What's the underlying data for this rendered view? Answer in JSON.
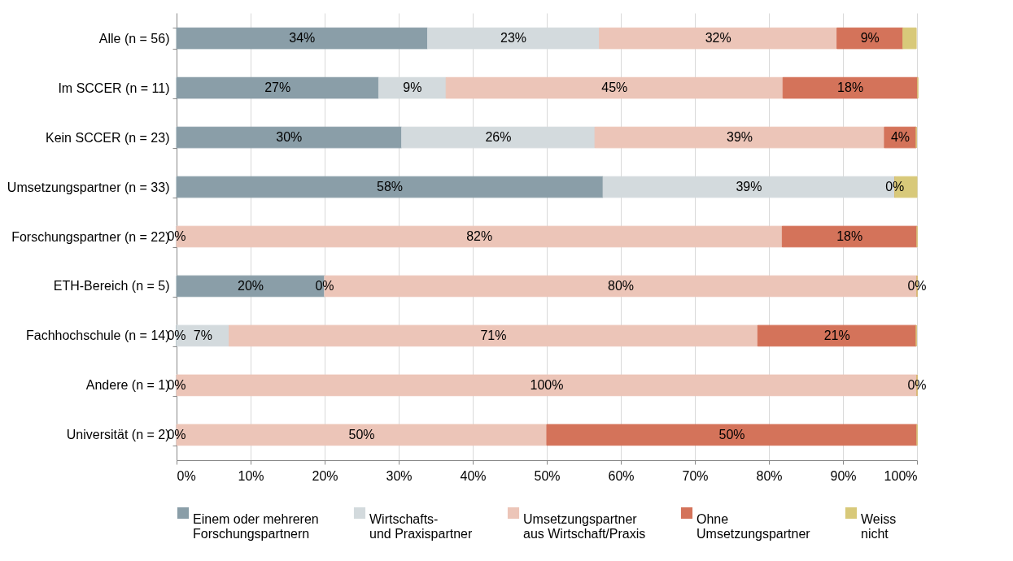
{
  "chart_data": {
    "type": "bar",
    "orientation": "horizontal",
    "stacked": true,
    "categories": [
      "Alle (n = 56)",
      "Im SCCER (n = 11)",
      "Kein SCCER (n = 23)",
      "Umsetzungspartner (n = 33)",
      "Forschungspartner (n = 22)",
      "ETH-Bereich (n = 5)",
      "Fachhochschule (n = 14)",
      "Andere (n = 1)",
      "Universität (n = 2)"
    ],
    "series": [
      {
        "name": "Einem oder mehreren\nForschungspartnern",
        "color": "#8a9ea8",
        "values": [
          33.9,
          27.3,
          30.4,
          57.6,
          0,
          20,
          0,
          0,
          0
        ],
        "value_labels": [
          "34%",
          "27%",
          "30%",
          "58%",
          "0%",
          "20%",
          "0%",
          "0%",
          "0%"
        ]
      },
      {
        "name": "Wirtschafts-\nund Praxispartner",
        "color": "#d3dadd",
        "values": [
          23.2,
          9.1,
          26.1,
          39.4,
          0,
          0,
          7.1,
          0,
          0
        ],
        "value_labels": [
          "23%",
          "9%",
          "26%",
          "39%",
          null,
          "0%",
          "7%",
          null,
          null
        ]
      },
      {
        "name": "Umsetzungspartner\naus Wirtschaft/Praxis",
        "color": "#ecc5b8",
        "values": [
          32.1,
          45.5,
          39.1,
          0,
          81.8,
          80,
          71.4,
          100,
          50
        ],
        "value_labels": [
          "32%",
          "45%",
          "39%",
          "0%",
          "82%",
          "80%",
          "71%",
          "100%",
          "50%"
        ]
      },
      {
        "name": "Ohne\nUmsetzungspartner",
        "color": "#d4735a",
        "values": [
          8.9,
          18.2,
          4.3,
          0,
          18.2,
          0,
          21.4,
          0,
          50
        ],
        "value_labels": [
          "9%",
          "18%",
          "4%",
          null,
          "18%",
          "0%",
          "21%",
          "0%",
          "50%"
        ]
      },
      {
        "name": "Weiss\nnicht",
        "color": "#d8c97a",
        "values": [
          1.8,
          0,
          0,
          3,
          0,
          0,
          0,
          0,
          0
        ],
        "value_labels": [
          null,
          null,
          null,
          null,
          null,
          null,
          null,
          null,
          null
        ]
      }
    ],
    "xlim": [
      0,
      100
    ],
    "xticks": [
      {
        "value": 0,
        "label": "0%"
      },
      {
        "value": 10,
        "label": "10%"
      },
      {
        "value": 20,
        "label": "20%"
      },
      {
        "value": 30,
        "label": "30%"
      },
      {
        "value": 40,
        "label": "40%"
      },
      {
        "value": 50,
        "label": "50%"
      },
      {
        "value": 60,
        "label": "60%"
      },
      {
        "value": 70,
        "label": "70%"
      },
      {
        "value": 80,
        "label": "80%"
      },
      {
        "value": 90,
        "label": "90%"
      },
      {
        "value": 100,
        "label": "100%"
      }
    ],
    "grid": "x",
    "legend": "bottom"
  }
}
